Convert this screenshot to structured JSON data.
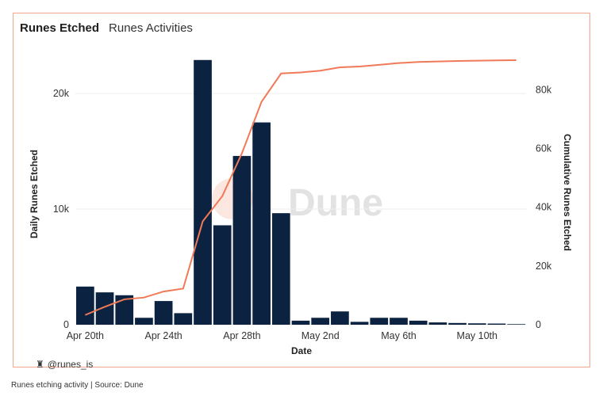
{
  "card": {
    "title": "Runes Etched",
    "subtitle": "Runes Activities",
    "handle": "@runes_is",
    "watermark": "Dune"
  },
  "caption": "Runes etching activity | Source: Dune",
  "colors": {
    "bar": "#0b2341",
    "line": "#f07a58",
    "border": "#f3a58e",
    "grid": "#eeeeee"
  },
  "chart_data": {
    "type": "bar",
    "x": [
      "2024-04-20",
      "2024-04-21",
      "2024-04-22",
      "2024-04-23",
      "2024-04-24",
      "2024-04-25",
      "2024-04-26",
      "2024-04-27",
      "2024-04-28",
      "2024-04-29",
      "2024-04-30",
      "2024-05-01",
      "2024-05-02",
      "2024-05-03",
      "2024-05-04",
      "2024-05-05",
      "2024-05-06",
      "2024-05-07",
      "2024-05-08",
      "2024-05-09",
      "2024-05-10",
      "2024-05-11",
      "2024-05-12"
    ],
    "x_tick_labels": [
      "Apr 20th",
      "Apr 24th",
      "Apr 28th",
      "May 2nd",
      "May 6th",
      "May 10th"
    ],
    "xlabel": "Date",
    "ylabel_left": "Daily Runes Etched",
    "ylabel_right": "Cumulative Runes Etched",
    "y_left_ticks": [
      "0",
      "10k",
      "20k"
    ],
    "y_right_ticks": [
      "0",
      "20k",
      "40k",
      "60k",
      "80k"
    ],
    "ylim_left": [
      0,
      23500
    ],
    "ylim_right": [
      0,
      92500
    ],
    "grid": true,
    "series": [
      {
        "kind": "bar",
        "axis": "left",
        "values": [
          3300,
          2800,
          2550,
          600,
          2050,
          1000,
          22900,
          8600,
          14600,
          17500,
          9650,
          350,
          600,
          1150,
          250,
          600,
          600,
          350,
          200,
          150,
          120,
          100,
          50
        ]
      },
      {
        "kind": "line",
        "axis": "right",
        "values": [
          3300,
          6100,
          8650,
          9250,
          11300,
          12300,
          35200,
          43800,
          58400,
          75900,
          85550,
          85900,
          86500,
          87650,
          87900,
          88500,
          89100,
          89450,
          89650,
          89800,
          89920,
          90020,
          90070
        ]
      }
    ]
  }
}
